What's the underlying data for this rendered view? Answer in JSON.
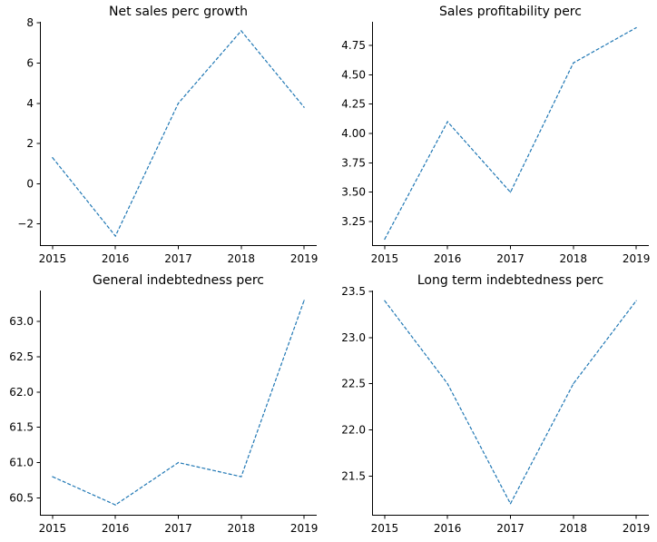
{
  "chart_data": [
    {
      "type": "line",
      "title": "Net sales perc growth",
      "x": [
        2015,
        2016,
        2017,
        2018,
        2019
      ],
      "xticks": [
        "2015",
        "2016",
        "2017",
        "2018",
        "2019"
      ],
      "values": [
        1.3,
        -2.6,
        4.0,
        7.6,
        3.8
      ],
      "ylim": [
        -3.05,
        8.05
      ],
      "yticks": [
        -2,
        0,
        2,
        4,
        6,
        8
      ],
      "ytick_labels": [
        "−2",
        "0",
        "2",
        "4",
        "6",
        "8"
      ],
      "grid": false,
      "line_style": "dashed",
      "color": "#1f77b4"
    },
    {
      "type": "line",
      "title": "Sales profitability perc",
      "x": [
        2015,
        2016,
        2017,
        2018,
        2019
      ],
      "xticks": [
        "2015",
        "2016",
        "2017",
        "2018",
        "2019"
      ],
      "values": [
        3.1,
        4.1,
        3.5,
        4.6,
        4.9
      ],
      "ylim": [
        3.05,
        4.95
      ],
      "yticks": [
        3.25,
        3.5,
        3.75,
        4.0,
        4.25,
        4.5,
        4.75
      ],
      "ytick_labels": [
        "3.25",
        "3.50",
        "3.75",
        "4.00",
        "4.25",
        "4.50",
        "4.75"
      ],
      "grid": false,
      "line_style": "dashed",
      "color": "#1f77b4"
    },
    {
      "type": "line",
      "title": "General indebtedness perc",
      "x": [
        2015,
        2016,
        2017,
        2018,
        2019
      ],
      "xticks": [
        "2015",
        "2016",
        "2017",
        "2018",
        "2019"
      ],
      "values": [
        60.8,
        60.4,
        61.0,
        60.8,
        63.3
      ],
      "ylim": [
        60.26,
        63.44
      ],
      "yticks": [
        60.5,
        61.0,
        61.5,
        62.0,
        62.5,
        63.0
      ],
      "ytick_labels": [
        "60.5",
        "61.0",
        "61.5",
        "62.0",
        "62.5",
        "63.0"
      ],
      "grid": false,
      "line_style": "dashed",
      "color": "#1f77b4"
    },
    {
      "type": "line",
      "title": "Long term indebtedness perc",
      "x": [
        2015,
        2016,
        2017,
        2018,
        2019
      ],
      "xticks": [
        "2015",
        "2016",
        "2017",
        "2018",
        "2019"
      ],
      "values": [
        23.4,
        22.5,
        21.2,
        22.5,
        23.4
      ],
      "ylim": [
        21.08,
        23.51
      ],
      "yticks": [
        21.5,
        22.0,
        22.5,
        23.0,
        23.5
      ],
      "ytick_labels": [
        "21.5",
        "22.0",
        "22.5",
        "23.0",
        "23.5"
      ],
      "grid": false,
      "line_style": "dashed",
      "color": "#1f77b4"
    }
  ]
}
